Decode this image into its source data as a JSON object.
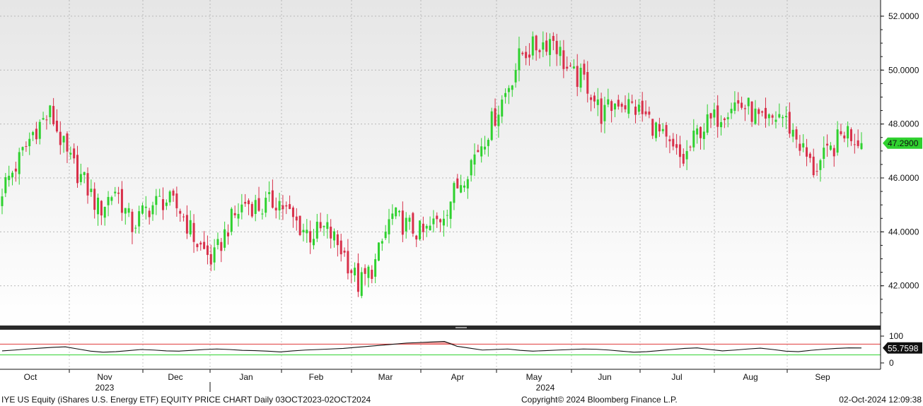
{
  "chart_data": [
    {
      "type": "candlestick",
      "title": "",
      "ylim": [
        40.5,
        52.6
      ],
      "y_ticks": [
        "52.0000",
        "50.0000",
        "48.0000",
        "46.0000",
        "44.0000",
        "42.0000"
      ],
      "y_tick_values": [
        52,
        50,
        48,
        46,
        44,
        42
      ],
      "last_price": {
        "value": 47.29,
        "label": "47.2900"
      },
      "colors": {
        "up": "#2fd12f",
        "down": "#d8304a",
        "label_bg": "#2fd12f"
      },
      "grid": true,
      "series": [
        {
          "dates": [
            "2023-10-03",
            "2023-10-10",
            "2023-10-17",
            "2023-10-24",
            "2023-10-31",
            "2023-11-07",
            "2023-11-14",
            "2023-11-21",
            "2023-11-28",
            "2023-12-05",
            "2023-12-12",
            "2023-12-19",
            "2023-12-26",
            "2023-12-29",
            "2024-01-05",
            "2024-01-12",
            "2024-01-19",
            "2024-01-26",
            "2024-02-02",
            "2024-02-09",
            "2024-02-16",
            "2024-02-23",
            "2024-03-01",
            "2024-03-08",
            "2024-03-15",
            "2024-03-22",
            "2024-03-28",
            "2024-04-05",
            "2024-04-12",
            "2024-04-19",
            "2024-04-26",
            "2024-05-03",
            "2024-05-10",
            "2024-05-17",
            "2024-05-24",
            "2024-05-31",
            "2024-06-07",
            "2024-06-14",
            "2024-06-21",
            "2024-06-28",
            "2024-07-05",
            "2024-07-12",
            "2024-07-19",
            "2024-07-26",
            "2024-08-02",
            "2024-08-09",
            "2024-08-16",
            "2024-08-23",
            "2024-08-30",
            "2024-09-06",
            "2024-09-13",
            "2024-09-20",
            "2024-09-27",
            "2024-10-02"
          ],
          "close": [
            45.6,
            46.6,
            47.8,
            48.4,
            46.8,
            45.9,
            44.8,
            45.6,
            44.2,
            44.9,
            45.2,
            44.8,
            43.6,
            42.9,
            44.3,
            45.1,
            44.9,
            45.2,
            44.4,
            43.9,
            44.1,
            43.3,
            42.0,
            42.8,
            44.6,
            44.2,
            43.9,
            44.5,
            45.6,
            46.7,
            47.8,
            49.1,
            50.6,
            50.9,
            51.2,
            49.8,
            49.6,
            48.3,
            48.9,
            48.6,
            48.1,
            47.2,
            46.6,
            47.8,
            48.2,
            48.8,
            48.6,
            47.9,
            48.4,
            47.5,
            46.3,
            46.9,
            47.8,
            47.29
          ],
          "name": ""
        }
      ]
    },
    {
      "type": "line",
      "title": "",
      "ylim": [
        0,
        100
      ],
      "y_ticks": [
        "100",
        "0"
      ],
      "y_tick_values": [
        100,
        0
      ],
      "overbought": 70,
      "oversold": 30,
      "last_value": {
        "value": 55.7598,
        "label": "55.7598"
      },
      "colors": {
        "line": "#111111",
        "overbought": "#e03a3a",
        "oversold": "#2fd12f",
        "label_bg": "#111111"
      },
      "values": [
        45,
        48,
        52,
        55,
        58,
        60,
        52,
        44,
        40,
        42,
        46,
        50,
        48,
        45,
        44,
        47,
        50,
        52,
        50,
        47,
        46,
        44,
        41,
        45,
        48,
        50,
        52,
        54,
        58,
        62,
        66,
        70,
        74,
        76,
        78,
        80,
        62,
        55,
        48,
        50,
        52,
        47,
        44,
        46,
        48,
        50,
        52,
        51,
        48,
        44,
        40,
        42,
        46,
        50,
        54,
        56,
        50,
        45,
        48,
        52,
        55,
        50,
        44,
        42,
        47,
        51,
        54,
        56,
        55.7598
      ],
      "name": ""
    }
  ],
  "x_axis": {
    "months": [
      "Oct",
      "Nov",
      "Dec",
      "Jan",
      "Feb",
      "Mar",
      "Apr",
      "May",
      "Jun",
      "Jul",
      "Aug",
      "Sep"
    ],
    "years": [
      "2023",
      "2024"
    ]
  },
  "footer": {
    "left": "IYE US Equity (iShares U.S. Energy ETF) EQUITY PRICE CHART  Daily 03OCT2023-02OCT2024",
    "center": "Copyright© 2024 Bloomberg Finance L.P.",
    "right": "02-Oct-2024 12:09:38"
  }
}
